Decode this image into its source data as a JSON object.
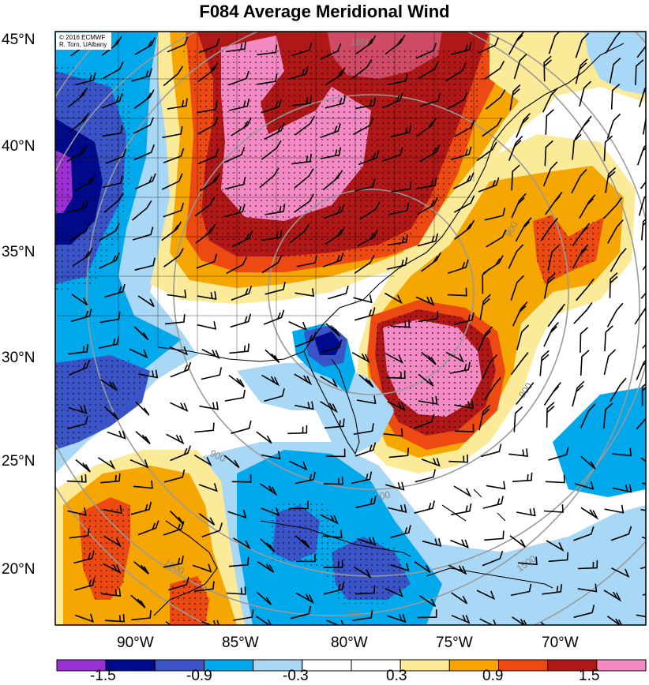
{
  "title": "F084 Average Meridional Wind",
  "credit": {
    "line1": "© 2016 ECMWF",
    "line2": "R. Torn, UAlbany"
  },
  "latitude_labels": [
    "45°N",
    "40°N",
    "35°N",
    "30°N",
    "25°N",
    "20°N"
  ],
  "longitude_labels": [
    "90°W",
    "85°W",
    "80°W",
    "75°W",
    "70°W"
  ],
  "contour_labels": [
    "1500",
    "900",
    "900",
    "900",
    "900",
    "1500",
    "1500",
    "1500"
  ],
  "colorbar": {
    "tick_labels": [
      "-1.5",
      "-0.9",
      "-0.3",
      "0.3",
      "0.9",
      "1.5"
    ],
    "colors": [
      "#9b2fd3",
      "#000a8c",
      "#3a54c8",
      "#00a8ec",
      "#a8d8f6",
      "#ffffff",
      "#ffffff",
      "#fbea98",
      "#f6a600",
      "#ec4a12",
      "#b01818",
      "#f48ac4"
    ]
  },
  "map_colors": {
    "neg_strong": "#000a8c",
    "neg_mid": "#3a54c8",
    "neg_light": "#00a8ec",
    "neg_pale": "#a8d8f6",
    "pos_pale": "#fbea98",
    "pos_light": "#f6a600",
    "pos_mid": "#ec4a12",
    "pos_strong": "#b01818",
    "pos_max": "#f48ac4",
    "purple": "#9b2fd3"
  }
}
